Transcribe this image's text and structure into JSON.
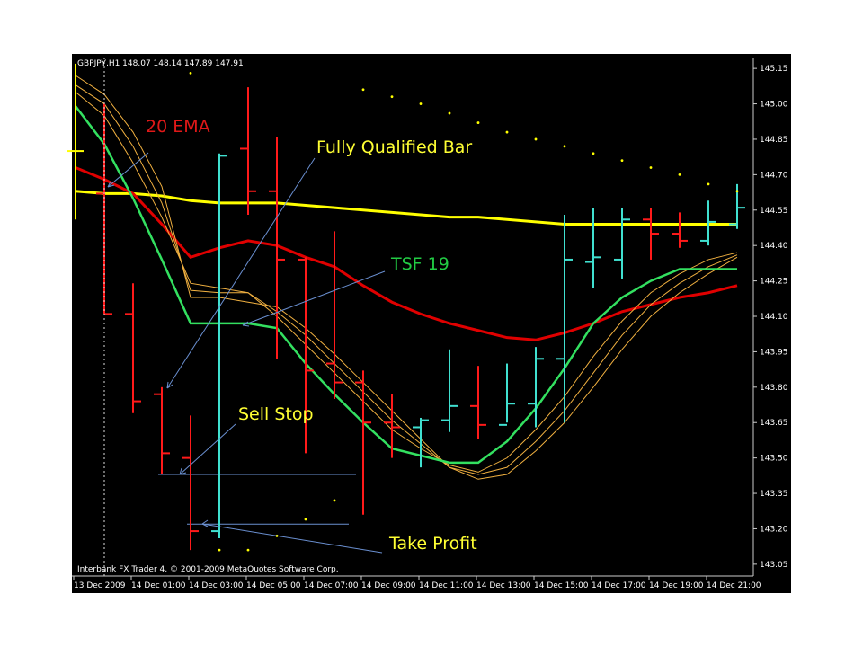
{
  "chart_data": {
    "type": "ohlc",
    "header": "GBPJPY,H1  148.07 148.14 147.89 147.91",
    "footer": "Interbank FX Trader 4, © 2001-2009 MetaQuotes Software Corp.",
    "categories": [
      "13 Dec 2009",
      null,
      "14 Dec 01:00",
      null,
      "14 Dec 03:00",
      null,
      "14 Dec 05:00",
      null,
      "14 Dec 07:00",
      null,
      "14 Dec 09:00",
      null,
      "14 Dec 11:00",
      null,
      "14 Dec 13:00",
      null,
      "14 Dec 15:00",
      null,
      "14 Dec 17:00",
      null,
      "14 Dec 19:00",
      null,
      "14 Dec 21:00",
      null
    ],
    "open": [
      144.8,
      144.62,
      144.11,
      143.77,
      143.5,
      143.19,
      144.81,
      144.63,
      144.34,
      143.9,
      143.82,
      143.65,
      143.63,
      143.66,
      143.72,
      143.64,
      143.73,
      143.92,
      144.33,
      144.34,
      144.51,
      144.45,
      144.42,
      144.49
    ],
    "high": [
      145.17,
      145.0,
      144.24,
      143.8,
      143.68,
      144.79,
      145.07,
      144.86,
      144.35,
      144.46,
      143.87,
      143.77,
      143.67,
      143.96,
      143.89,
      143.9,
      143.97,
      144.53,
      144.56,
      144.56,
      144.56,
      144.54,
      144.59,
      144.66
    ],
    "low": [
      144.51,
      144.11,
      143.69,
      143.43,
      143.11,
      143.16,
      144.53,
      143.92,
      143.52,
      143.75,
      143.26,
      143.5,
      143.46,
      143.61,
      143.58,
      143.65,
      143.63,
      143.65,
      144.22,
      144.26,
      144.34,
      144.39,
      144.4,
      144.47
    ],
    "close": [
      144.8,
      144.11,
      143.74,
      143.52,
      143.19,
      144.78,
      144.63,
      144.34,
      143.87,
      143.82,
      143.65,
      143.63,
      143.66,
      143.72,
      143.64,
      143.73,
      143.92,
      144.34,
      144.35,
      144.51,
      144.45,
      144.42,
      144.5,
      144.56
    ],
    "up_color": "#40e0d0",
    "down_color": "#ff1a1a",
    "unchanged_color": "#ffff00",
    "overlays": [
      {
        "color": "#ffff00",
        "width": 3,
        "values": [
          144.63,
          144.62,
          144.62,
          144.61,
          144.59,
          144.58,
          144.58,
          144.58,
          144.57,
          144.56,
          144.55,
          144.54,
          144.53,
          144.52,
          144.52,
          144.51,
          144.5,
          144.49,
          144.49,
          144.49,
          144.49,
          144.49,
          144.49,
          144.49
        ]
      },
      {
        "color": "#e00000",
        "width": 3,
        "values": [
          144.73,
          144.68,
          144.62,
          144.49,
          144.35,
          144.39,
          144.42,
          144.4,
          144.35,
          144.31,
          144.23,
          144.16,
          144.11,
          144.07,
          144.04,
          144.01,
          144.0,
          144.03,
          144.07,
          144.12,
          144.15,
          144.18,
          144.2,
          144.23
        ]
      },
      {
        "color": "#f0b040",
        "width": 1,
        "values": [
          145.05,
          144.95,
          144.75,
          144.52,
          144.24,
          144.22,
          144.2,
          144.1,
          143.98,
          143.86,
          143.74,
          143.62,
          143.54,
          143.47,
          143.44,
          143.5,
          143.62,
          143.76,
          143.93,
          144.08,
          144.2,
          144.28,
          144.34,
          144.37
        ]
      },
      {
        "color": "#f0b040",
        "width": 1,
        "values": [
          145.08,
          145.0,
          144.82,
          144.58,
          144.21,
          144.2,
          144.2,
          144.12,
          144.02,
          143.9,
          143.78,
          143.66,
          143.56,
          143.46,
          143.43,
          143.46,
          143.57,
          143.7,
          143.86,
          144.02,
          144.15,
          144.24,
          144.31,
          144.36
        ]
      },
      {
        "color": "#f0b040",
        "width": 1,
        "values": [
          145.12,
          145.04,
          144.88,
          144.65,
          144.18,
          144.18,
          144.16,
          144.14,
          144.05,
          143.94,
          143.82,
          143.7,
          143.58,
          143.46,
          143.41,
          143.43,
          143.53,
          143.65,
          143.8,
          143.96,
          144.1,
          144.2,
          144.28,
          144.35
        ]
      },
      {
        "color": "#33e060",
        "width": 2.5,
        "values": [
          144.99,
          144.83,
          144.6,
          144.34,
          144.07,
          144.07,
          144.07,
          144.05,
          143.9,
          143.77,
          143.65,
          143.54,
          143.51,
          143.48,
          143.48,
          143.57,
          143.71,
          143.88,
          144.07,
          144.18,
          144.25,
          144.3,
          144.3,
          144.3
        ]
      }
    ],
    "dots": {
      "color": "#ffff00",
      "values": [
        null,
        null,
        null,
        null,
        145.13,
        143.11,
        143.11,
        143.17,
        143.24,
        143.32,
        145.06,
        145.03,
        145.0,
        144.96,
        144.92,
        144.88,
        144.85,
        144.82,
        144.79,
        144.76,
        144.73,
        144.7,
        144.66,
        144.63
      ]
    },
    "levels": [
      {
        "color": "#6a8fd0",
        "value": 143.43,
        "from": 3,
        "to": 9.75
      },
      {
        "color": "#6a8fd0",
        "value": 143.22,
        "from": 4,
        "to": 9.5
      }
    ],
    "annotations": [
      {
        "text": "20 EMA",
        "color": "#e01818"
      },
      {
        "text": "Fully Qualified Bar",
        "color": "#ffff33"
      },
      {
        "text": "TSF 19",
        "color": "#22cc44"
      },
      {
        "text": "Sell Stop",
        "color": "#ffff33"
      },
      {
        "text": "Take Profit",
        "color": "#ffff33"
      }
    ],
    "ylim": [
      143.0,
      145.2
    ],
    "yticks": [
      {
        "value": 145.15,
        "label": "145.15"
      },
      {
        "value": 145,
        "label": "145.00"
      },
      144.85,
      {
        "value": 144.7,
        "label": "144.70"
      },
      144.55,
      {
        "value": 144.4,
        "label": "144.40"
      },
      144.25,
      {
        "value": 144.1,
        "label": "144.10"
      },
      143.95,
      {
        "value": 143.8,
        "label": "143.80"
      },
      143.65,
      {
        "value": 143.5,
        "label": "143.50"
      },
      143.35,
      {
        "value": 143.2,
        "label": "143.20"
      },
      143.05
    ]
  }
}
